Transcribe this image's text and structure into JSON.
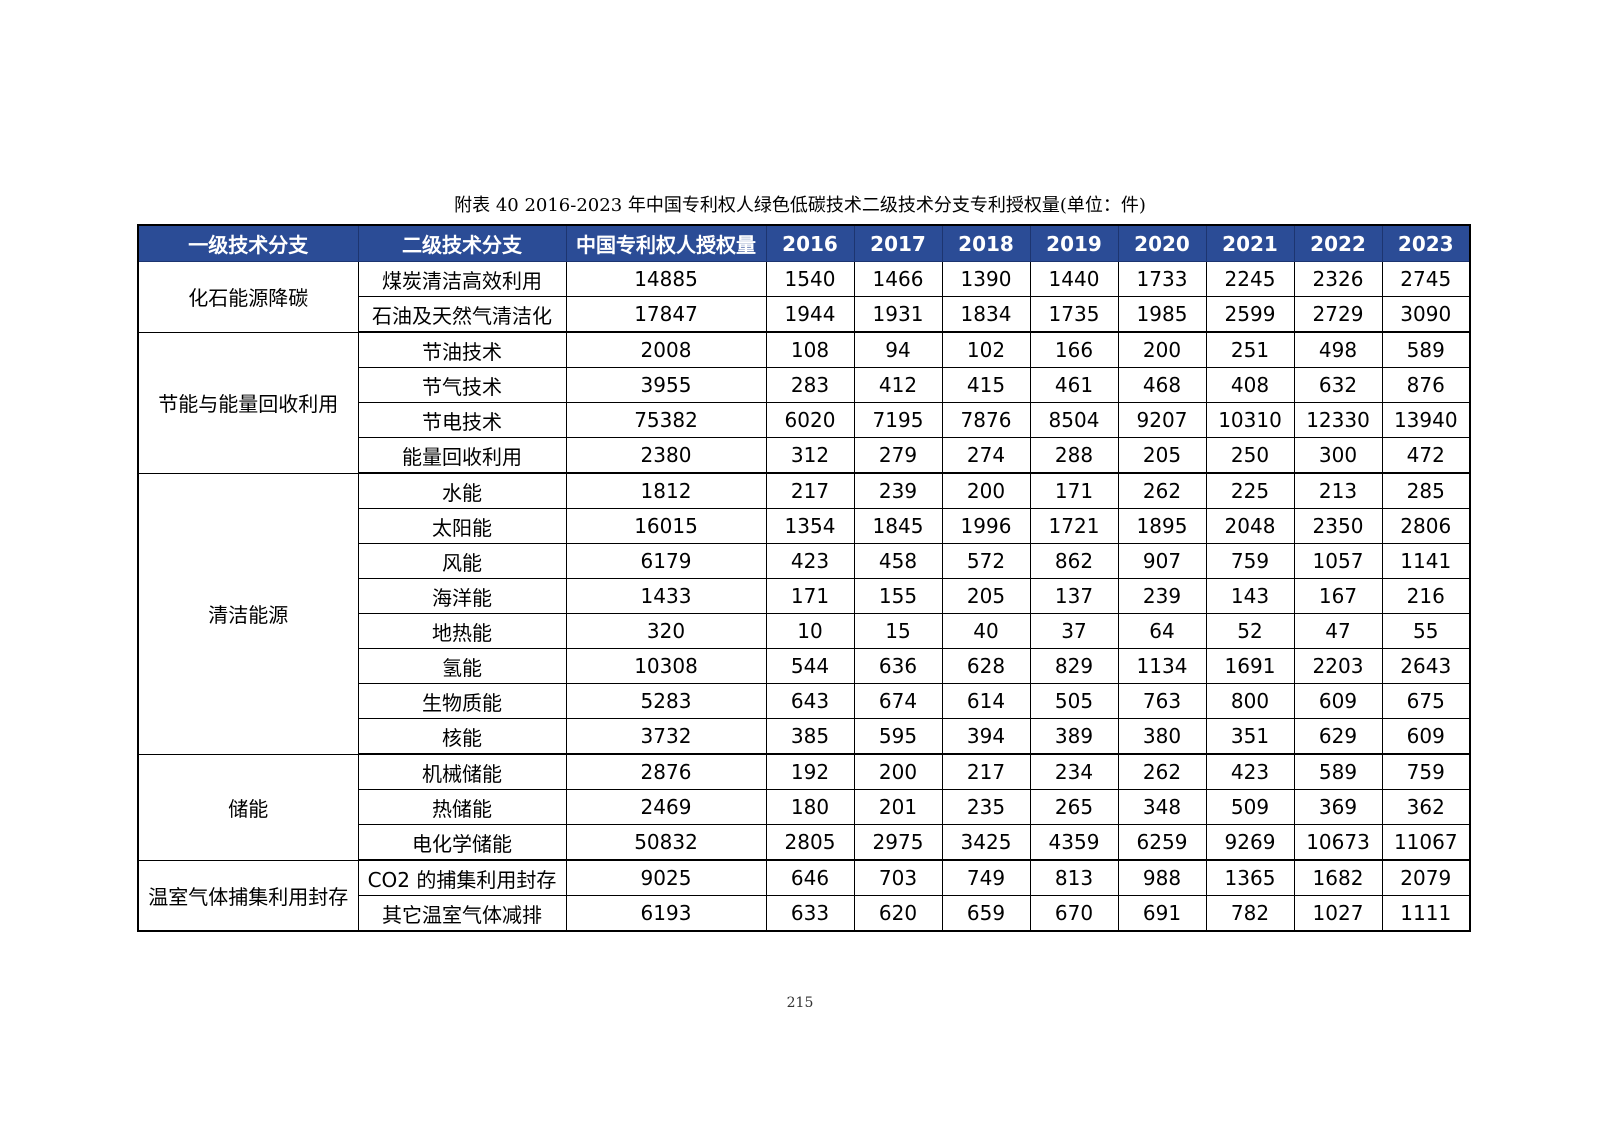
{
  "caption": "附表 40 2016-2023 年中国专利权人绿色低碳技术二级技术分支专利授权量(单位：件)",
  "headers": [
    "一级技术分支",
    "二级技术分支",
    "中国专利权人授权量",
    "2016",
    "2017",
    "2018",
    "2019",
    "2020",
    "2021",
    "2022",
    "2023"
  ],
  "groups": [
    {
      "name": "化石能源降碳",
      "rows": [
        {
          "name": "煤炭清洁高效利用",
          "total": "14885",
          "years": [
            "1540",
            "1466",
            "1390",
            "1440",
            "1733",
            "2245",
            "2326",
            "2745"
          ]
        },
        {
          "name": "石油及天然气清洁化",
          "total": "17847",
          "years": [
            "1944",
            "1931",
            "1834",
            "1735",
            "1985",
            "2599",
            "2729",
            "3090"
          ]
        }
      ]
    },
    {
      "name": "节能与能量回收利用",
      "rows": [
        {
          "name": "节油技术",
          "total": "2008",
          "years": [
            "108",
            "94",
            "102",
            "166",
            "200",
            "251",
            "498",
            "589"
          ]
        },
        {
          "name": "节气技术",
          "total": "3955",
          "years": [
            "283",
            "412",
            "415",
            "461",
            "468",
            "408",
            "632",
            "876"
          ]
        },
        {
          "name": "节电技术",
          "total": "75382",
          "years": [
            "6020",
            "7195",
            "7876",
            "8504",
            "9207",
            "10310",
            "12330",
            "13940"
          ]
        },
        {
          "name": "能量回收利用",
          "total": "2380",
          "years": [
            "312",
            "279",
            "274",
            "288",
            "205",
            "250",
            "300",
            "472"
          ]
        }
      ]
    },
    {
      "name": "清洁能源",
      "rows": [
        {
          "name": "水能",
          "total": "1812",
          "years": [
            "217",
            "239",
            "200",
            "171",
            "262",
            "225",
            "213",
            "285"
          ]
        },
        {
          "name": "太阳能",
          "total": "16015",
          "years": [
            "1354",
            "1845",
            "1996",
            "1721",
            "1895",
            "2048",
            "2350",
            "2806"
          ]
        },
        {
          "name": "风能",
          "total": "6179",
          "years": [
            "423",
            "458",
            "572",
            "862",
            "907",
            "759",
            "1057",
            "1141"
          ]
        },
        {
          "name": "海洋能",
          "total": "1433",
          "years": [
            "171",
            "155",
            "205",
            "137",
            "239",
            "143",
            "167",
            "216"
          ]
        },
        {
          "name": "地热能",
          "total": "320",
          "years": [
            "10",
            "15",
            "40",
            "37",
            "64",
            "52",
            "47",
            "55"
          ]
        },
        {
          "name": "氢能",
          "total": "10308",
          "years": [
            "544",
            "636",
            "628",
            "829",
            "1134",
            "1691",
            "2203",
            "2643"
          ]
        },
        {
          "name": "生物质能",
          "total": "5283",
          "years": [
            "643",
            "674",
            "614",
            "505",
            "763",
            "800",
            "609",
            "675"
          ]
        },
        {
          "name": "核能",
          "total": "3732",
          "years": [
            "385",
            "595",
            "394",
            "389",
            "380",
            "351",
            "629",
            "609"
          ]
        }
      ]
    },
    {
      "name": "储能",
      "rows": [
        {
          "name": "机械储能",
          "total": "2876",
          "years": [
            "192",
            "200",
            "217",
            "234",
            "262",
            "423",
            "589",
            "759"
          ]
        },
        {
          "name": "热储能",
          "total": "2469",
          "years": [
            "180",
            "201",
            "235",
            "265",
            "348",
            "509",
            "369",
            "362"
          ]
        },
        {
          "name": "电化学储能",
          "total": "50832",
          "years": [
            "2805",
            "2975",
            "3425",
            "4359",
            "6259",
            "9269",
            "10673",
            "11067"
          ]
        }
      ]
    },
    {
      "name": "温室气体捕集利用封存",
      "rows": [
        {
          "name": "CO2 的捕集利用封存",
          "total": "9025",
          "years": [
            "646",
            "703",
            "749",
            "813",
            "988",
            "1365",
            "1682",
            "2079"
          ]
        },
        {
          "name": "其它温室气体减排",
          "total": "6193",
          "years": [
            "633",
            "620",
            "659",
            "670",
            "691",
            "782",
            "1027",
            "1111"
          ]
        }
      ]
    }
  ],
  "page_number": "215",
  "colors": {
    "header_bg": "#2b4c96",
    "header_text": "#ffffff"
  }
}
